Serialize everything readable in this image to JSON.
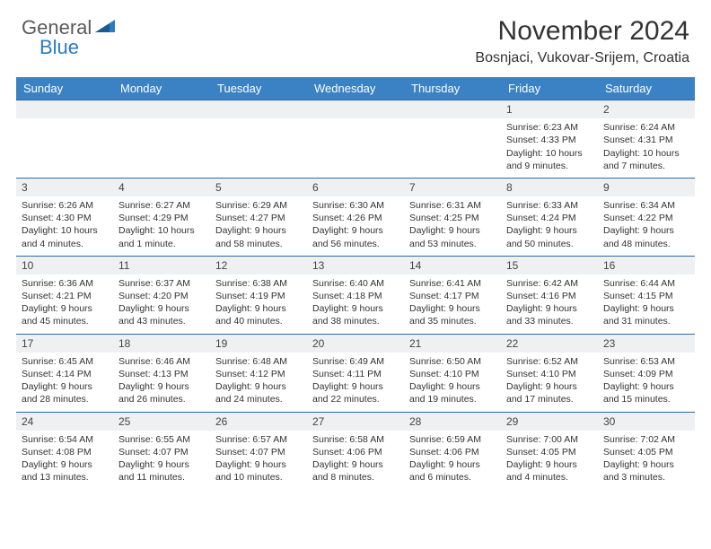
{
  "brand": {
    "part1": "General",
    "part2": "Blue"
  },
  "title": "November 2024",
  "location": "Bosnjaci, Vukovar-Srijem, Croatia",
  "colors": {
    "header_bg": "#3a82c4",
    "header_text": "#ffffff",
    "daynum_bg": "#eef0f2",
    "border": "#2b6aa8",
    "brand_gray": "#5a5a5a",
    "brand_blue": "#2b7bbf",
    "text": "#333333",
    "background": "#ffffff"
  },
  "typography": {
    "title_fontsize": 30,
    "location_fontsize": 16,
    "dayhead_fontsize": 13,
    "daynum_fontsize": 12,
    "cell_fontsize": 10.5
  },
  "day_headers": [
    "Sunday",
    "Monday",
    "Tuesday",
    "Wednesday",
    "Thursday",
    "Friday",
    "Saturday"
  ],
  "weeks": [
    {
      "nums": [
        "",
        "",
        "",
        "",
        "",
        "1",
        "2"
      ],
      "cells": [
        null,
        null,
        null,
        null,
        null,
        {
          "sunrise": "6:23 AM",
          "sunset": "4:33 PM",
          "daylight": "10 hours and 9 minutes."
        },
        {
          "sunrise": "6:24 AM",
          "sunset": "4:31 PM",
          "daylight": "10 hours and 7 minutes."
        }
      ]
    },
    {
      "nums": [
        "3",
        "4",
        "5",
        "6",
        "7",
        "8",
        "9"
      ],
      "cells": [
        {
          "sunrise": "6:26 AM",
          "sunset": "4:30 PM",
          "daylight": "10 hours and 4 minutes."
        },
        {
          "sunrise": "6:27 AM",
          "sunset": "4:29 PM",
          "daylight": "10 hours and 1 minute."
        },
        {
          "sunrise": "6:29 AM",
          "sunset": "4:27 PM",
          "daylight": "9 hours and 58 minutes."
        },
        {
          "sunrise": "6:30 AM",
          "sunset": "4:26 PM",
          "daylight": "9 hours and 56 minutes."
        },
        {
          "sunrise": "6:31 AM",
          "sunset": "4:25 PM",
          "daylight": "9 hours and 53 minutes."
        },
        {
          "sunrise": "6:33 AM",
          "sunset": "4:24 PM",
          "daylight": "9 hours and 50 minutes."
        },
        {
          "sunrise": "6:34 AM",
          "sunset": "4:22 PM",
          "daylight": "9 hours and 48 minutes."
        }
      ]
    },
    {
      "nums": [
        "10",
        "11",
        "12",
        "13",
        "14",
        "15",
        "16"
      ],
      "cells": [
        {
          "sunrise": "6:36 AM",
          "sunset": "4:21 PM",
          "daylight": "9 hours and 45 minutes."
        },
        {
          "sunrise": "6:37 AM",
          "sunset": "4:20 PM",
          "daylight": "9 hours and 43 minutes."
        },
        {
          "sunrise": "6:38 AM",
          "sunset": "4:19 PM",
          "daylight": "9 hours and 40 minutes."
        },
        {
          "sunrise": "6:40 AM",
          "sunset": "4:18 PM",
          "daylight": "9 hours and 38 minutes."
        },
        {
          "sunrise": "6:41 AM",
          "sunset": "4:17 PM",
          "daylight": "9 hours and 35 minutes."
        },
        {
          "sunrise": "6:42 AM",
          "sunset": "4:16 PM",
          "daylight": "9 hours and 33 minutes."
        },
        {
          "sunrise": "6:44 AM",
          "sunset": "4:15 PM",
          "daylight": "9 hours and 31 minutes."
        }
      ]
    },
    {
      "nums": [
        "17",
        "18",
        "19",
        "20",
        "21",
        "22",
        "23"
      ],
      "cells": [
        {
          "sunrise": "6:45 AM",
          "sunset": "4:14 PM",
          "daylight": "9 hours and 28 minutes."
        },
        {
          "sunrise": "6:46 AM",
          "sunset": "4:13 PM",
          "daylight": "9 hours and 26 minutes."
        },
        {
          "sunrise": "6:48 AM",
          "sunset": "4:12 PM",
          "daylight": "9 hours and 24 minutes."
        },
        {
          "sunrise": "6:49 AM",
          "sunset": "4:11 PM",
          "daylight": "9 hours and 22 minutes."
        },
        {
          "sunrise": "6:50 AM",
          "sunset": "4:10 PM",
          "daylight": "9 hours and 19 minutes."
        },
        {
          "sunrise": "6:52 AM",
          "sunset": "4:10 PM",
          "daylight": "9 hours and 17 minutes."
        },
        {
          "sunrise": "6:53 AM",
          "sunset": "4:09 PM",
          "daylight": "9 hours and 15 minutes."
        }
      ]
    },
    {
      "nums": [
        "24",
        "25",
        "26",
        "27",
        "28",
        "29",
        "30"
      ],
      "cells": [
        {
          "sunrise": "6:54 AM",
          "sunset": "4:08 PM",
          "daylight": "9 hours and 13 minutes."
        },
        {
          "sunrise": "6:55 AM",
          "sunset": "4:07 PM",
          "daylight": "9 hours and 11 minutes."
        },
        {
          "sunrise": "6:57 AM",
          "sunset": "4:07 PM",
          "daylight": "9 hours and 10 minutes."
        },
        {
          "sunrise": "6:58 AM",
          "sunset": "4:06 PM",
          "daylight": "9 hours and 8 minutes."
        },
        {
          "sunrise": "6:59 AM",
          "sunset": "4:06 PM",
          "daylight": "9 hours and 6 minutes."
        },
        {
          "sunrise": "7:00 AM",
          "sunset": "4:05 PM",
          "daylight": "9 hours and 4 minutes."
        },
        {
          "sunrise": "7:02 AM",
          "sunset": "4:05 PM",
          "daylight": "9 hours and 3 minutes."
        }
      ]
    }
  ]
}
